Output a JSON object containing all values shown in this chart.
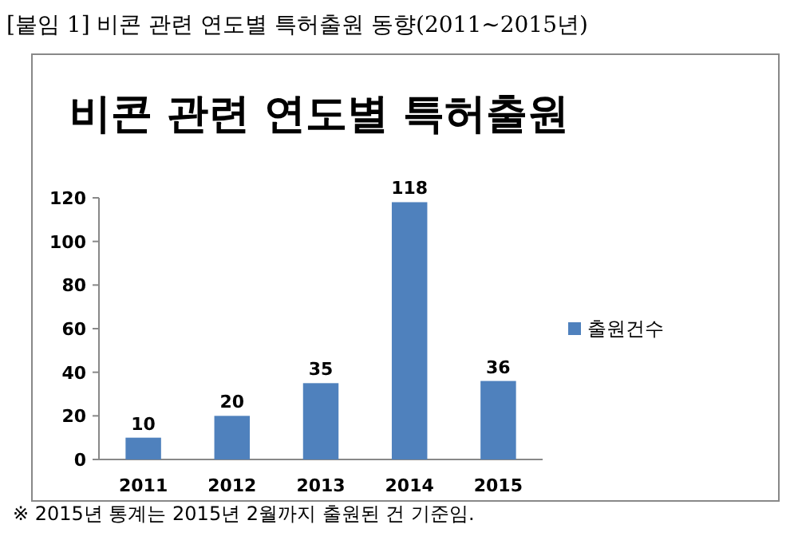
{
  "chart_data": {
    "type": "bar",
    "title": "비콘 관련 연도별 특허출원",
    "annotations": [
      "[붙임 1] 비콘 관련 연도별 특허출원 동향(2011~2015년)",
      "※ 2015년 통계는 2015년 2월까지 출원된 건 기준임."
    ],
    "categories": [
      "2011",
      "2012",
      "2013",
      "2014",
      "2015"
    ],
    "series": [
      {
        "name": "출원건수",
        "color": "#4f81bd",
        "values": [
          10,
          20,
          35,
          118,
          36
        ]
      }
    ],
    "ylim": [
      0,
      120
    ],
    "yticks": [
      0,
      20,
      40,
      60,
      80,
      100,
      120
    ],
    "data_labels": true,
    "legend": "right"
  }
}
